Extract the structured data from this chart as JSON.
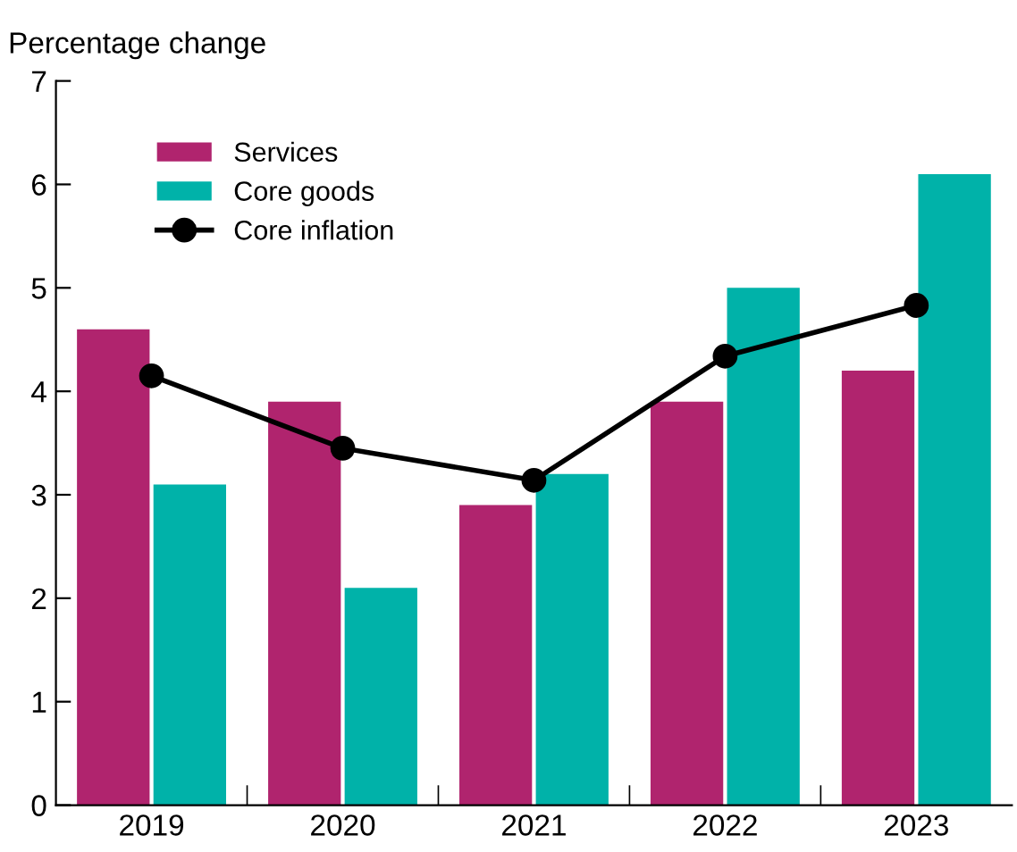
{
  "chart_data": {
    "type": "bar",
    "ylabel": "Percentage change",
    "categories": [
      "2019",
      "2020",
      "2021",
      "2022",
      "2023"
    ],
    "series": [
      {
        "name": "Services",
        "color": "#b0246e",
        "values": [
          4.6,
          3.9,
          2.9,
          3.9,
          4.2
        ]
      },
      {
        "name": "Core goods",
        "color": "#00b2a9",
        "values": [
          3.1,
          2.1,
          3.2,
          5.0,
          6.1
        ]
      },
      {
        "name": "Core inflation",
        "type": "line",
        "color": "#000000",
        "marker": "circle",
        "values": [
          4.15,
          3.45,
          3.14,
          4.34,
          4.83
        ]
      }
    ],
    "ylim": [
      0,
      7
    ],
    "yticks": [
      0,
      1,
      2,
      3,
      4,
      5,
      6,
      7
    ],
    "grid": false,
    "legend": "top left"
  }
}
